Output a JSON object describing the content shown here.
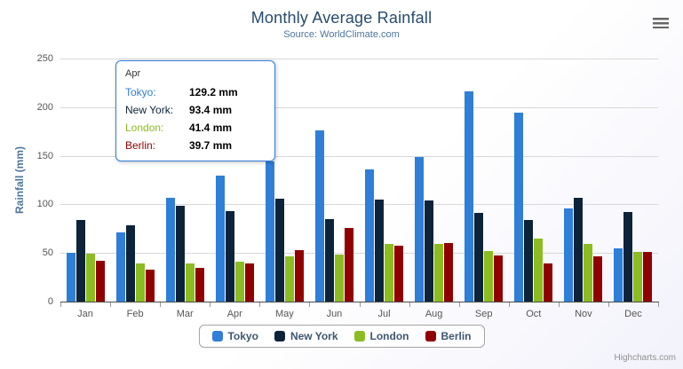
{
  "chart": {
    "credits": "Highcharts.com",
    "export_menu_icon": "hamburger-icon"
  },
  "chart_data": {
    "type": "bar",
    "title": "Monthly Average Rainfall",
    "subtitle": "Source: WorldClimate.com",
    "categories": [
      "Jan",
      "Feb",
      "Mar",
      "Apr",
      "May",
      "Jun",
      "Jul",
      "Aug",
      "Sep",
      "Oct",
      "Nov",
      "Dec"
    ],
    "series": [
      {
        "name": "Tokyo",
        "color": "#2f7ed8",
        "values": [
          49.9,
          71.5,
          106.4,
          129.2,
          144.0,
          176.0,
          135.6,
          148.5,
          216.4,
          194.1,
          95.6,
          54.4
        ]
      },
      {
        "name": "New York",
        "color": "#0d233a",
        "values": [
          83.6,
          78.8,
          98.5,
          93.4,
          106.0,
          84.5,
          105.0,
          104.3,
          91.2,
          83.5,
          106.6,
          92.3
        ]
      },
      {
        "name": "London",
        "color": "#8bbc21",
        "values": [
          48.9,
          38.8,
          39.3,
          41.4,
          47.0,
          48.3,
          59.0,
          59.6,
          52.4,
          65.2,
          59.3,
          51.2
        ]
      },
      {
        "name": "Berlin",
        "color": "#910000",
        "values": [
          42.4,
          33.2,
          34.5,
          39.7,
          52.6,
          75.5,
          57.4,
          60.4,
          47.6,
          39.1,
          46.8,
          51.1
        ]
      }
    ],
    "xlabel": "",
    "ylabel": "Rainfall (mm)",
    "ylim": [
      0,
      250
    ],
    "yticks": [
      0,
      50,
      100,
      150,
      200,
      250
    ],
    "grid": true,
    "legend_position": "bottom"
  },
  "tooltip": {
    "header": "Apr",
    "rows": [
      {
        "name": "Tokyo:",
        "value": "129.2 mm",
        "color": "#2f7ed8"
      },
      {
        "name": "New York:",
        "value": "93.4 mm",
        "color": "#0d233a"
      },
      {
        "name": "London:",
        "value": "41.4 mm",
        "color": "#8bbc21"
      },
      {
        "name": "Berlin:",
        "value": "39.7 mm",
        "color": "#910000"
      }
    ]
  }
}
